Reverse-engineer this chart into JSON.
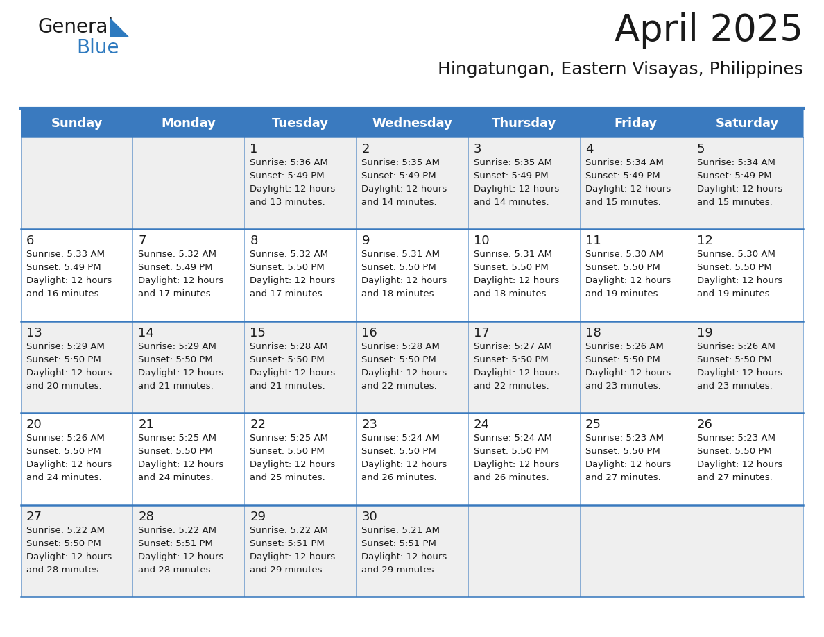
{
  "title": "April 2025",
  "subtitle": "Hingatungan, Eastern Visayas, Philippines",
  "header_color": "#3a7abf",
  "header_text_color": "#ffffff",
  "row_colors": [
    "#efefef",
    "#ffffff",
    "#efefef",
    "#ffffff",
    "#efefef"
  ],
  "border_color": "#3a7abf",
  "text_color": "#1a1a1a",
  "day_names": [
    "Sunday",
    "Monday",
    "Tuesday",
    "Wednesday",
    "Thursday",
    "Friday",
    "Saturday"
  ],
  "logo_general_color": "#1a1a1a",
  "logo_blue_color": "#2e7abf",
  "logo_triangle_color": "#2e7abf",
  "days": [
    {
      "day": 1,
      "col": 2,
      "row": 0,
      "sunrise": "5:36 AM",
      "sunset": "5:49 PM",
      "daylight_hours": 12,
      "daylight_minutes": 13
    },
    {
      "day": 2,
      "col": 3,
      "row": 0,
      "sunrise": "5:35 AM",
      "sunset": "5:49 PM",
      "daylight_hours": 12,
      "daylight_minutes": 14
    },
    {
      "day": 3,
      "col": 4,
      "row": 0,
      "sunrise": "5:35 AM",
      "sunset": "5:49 PM",
      "daylight_hours": 12,
      "daylight_minutes": 14
    },
    {
      "day": 4,
      "col": 5,
      "row": 0,
      "sunrise": "5:34 AM",
      "sunset": "5:49 PM",
      "daylight_hours": 12,
      "daylight_minutes": 15
    },
    {
      "day": 5,
      "col": 6,
      "row": 0,
      "sunrise": "5:34 AM",
      "sunset": "5:49 PM",
      "daylight_hours": 12,
      "daylight_minutes": 15
    },
    {
      "day": 6,
      "col": 0,
      "row": 1,
      "sunrise": "5:33 AM",
      "sunset": "5:49 PM",
      "daylight_hours": 12,
      "daylight_minutes": 16
    },
    {
      "day": 7,
      "col": 1,
      "row": 1,
      "sunrise": "5:32 AM",
      "sunset": "5:49 PM",
      "daylight_hours": 12,
      "daylight_minutes": 17
    },
    {
      "day": 8,
      "col": 2,
      "row": 1,
      "sunrise": "5:32 AM",
      "sunset": "5:50 PM",
      "daylight_hours": 12,
      "daylight_minutes": 17
    },
    {
      "day": 9,
      "col": 3,
      "row": 1,
      "sunrise": "5:31 AM",
      "sunset": "5:50 PM",
      "daylight_hours": 12,
      "daylight_minutes": 18
    },
    {
      "day": 10,
      "col": 4,
      "row": 1,
      "sunrise": "5:31 AM",
      "sunset": "5:50 PM",
      "daylight_hours": 12,
      "daylight_minutes": 18
    },
    {
      "day": 11,
      "col": 5,
      "row": 1,
      "sunrise": "5:30 AM",
      "sunset": "5:50 PM",
      "daylight_hours": 12,
      "daylight_minutes": 19
    },
    {
      "day": 12,
      "col": 6,
      "row": 1,
      "sunrise": "5:30 AM",
      "sunset": "5:50 PM",
      "daylight_hours": 12,
      "daylight_minutes": 19
    },
    {
      "day": 13,
      "col": 0,
      "row": 2,
      "sunrise": "5:29 AM",
      "sunset": "5:50 PM",
      "daylight_hours": 12,
      "daylight_minutes": 20
    },
    {
      "day": 14,
      "col": 1,
      "row": 2,
      "sunrise": "5:29 AM",
      "sunset": "5:50 PM",
      "daylight_hours": 12,
      "daylight_minutes": 21
    },
    {
      "day": 15,
      "col": 2,
      "row": 2,
      "sunrise": "5:28 AM",
      "sunset": "5:50 PM",
      "daylight_hours": 12,
      "daylight_minutes": 21
    },
    {
      "day": 16,
      "col": 3,
      "row": 2,
      "sunrise": "5:28 AM",
      "sunset": "5:50 PM",
      "daylight_hours": 12,
      "daylight_minutes": 22
    },
    {
      "day": 17,
      "col": 4,
      "row": 2,
      "sunrise": "5:27 AM",
      "sunset": "5:50 PM",
      "daylight_hours": 12,
      "daylight_minutes": 22
    },
    {
      "day": 18,
      "col": 5,
      "row": 2,
      "sunrise": "5:26 AM",
      "sunset": "5:50 PM",
      "daylight_hours": 12,
      "daylight_minutes": 23
    },
    {
      "day": 19,
      "col": 6,
      "row": 2,
      "sunrise": "5:26 AM",
      "sunset": "5:50 PM",
      "daylight_hours": 12,
      "daylight_minutes": 23
    },
    {
      "day": 20,
      "col": 0,
      "row": 3,
      "sunrise": "5:26 AM",
      "sunset": "5:50 PM",
      "daylight_hours": 12,
      "daylight_minutes": 24
    },
    {
      "day": 21,
      "col": 1,
      "row": 3,
      "sunrise": "5:25 AM",
      "sunset": "5:50 PM",
      "daylight_hours": 12,
      "daylight_minutes": 24
    },
    {
      "day": 22,
      "col": 2,
      "row": 3,
      "sunrise": "5:25 AM",
      "sunset": "5:50 PM",
      "daylight_hours": 12,
      "daylight_minutes": 25
    },
    {
      "day": 23,
      "col": 3,
      "row": 3,
      "sunrise": "5:24 AM",
      "sunset": "5:50 PM",
      "daylight_hours": 12,
      "daylight_minutes": 26
    },
    {
      "day": 24,
      "col": 4,
      "row": 3,
      "sunrise": "5:24 AM",
      "sunset": "5:50 PM",
      "daylight_hours": 12,
      "daylight_minutes": 26
    },
    {
      "day": 25,
      "col": 5,
      "row": 3,
      "sunrise": "5:23 AM",
      "sunset": "5:50 PM",
      "daylight_hours": 12,
      "daylight_minutes": 27
    },
    {
      "day": 26,
      "col": 6,
      "row": 3,
      "sunrise": "5:23 AM",
      "sunset": "5:50 PM",
      "daylight_hours": 12,
      "daylight_minutes": 27
    },
    {
      "day": 27,
      "col": 0,
      "row": 4,
      "sunrise": "5:22 AM",
      "sunset": "5:50 PM",
      "daylight_hours": 12,
      "daylight_minutes": 28
    },
    {
      "day": 28,
      "col": 1,
      "row": 4,
      "sunrise": "5:22 AM",
      "sunset": "5:51 PM",
      "daylight_hours": 12,
      "daylight_minutes": 28
    },
    {
      "day": 29,
      "col": 2,
      "row": 4,
      "sunrise": "5:22 AM",
      "sunset": "5:51 PM",
      "daylight_hours": 12,
      "daylight_minutes": 29
    },
    {
      "day": 30,
      "col": 3,
      "row": 4,
      "sunrise": "5:21 AM",
      "sunset": "5:51 PM",
      "daylight_hours": 12,
      "daylight_minutes": 29
    }
  ]
}
